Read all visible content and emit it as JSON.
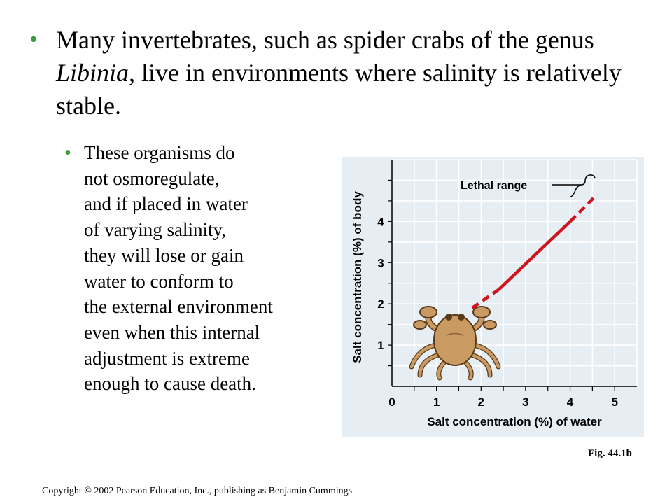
{
  "slide": {
    "main_bullet_pre": "Many invertebrates, such as spider crabs of the genus ",
    "main_bullet_italic": "Libinia",
    "main_bullet_post": ", live in environments where salinity is relatively stable.",
    "sub_bullet_lines": [
      "These organisms do",
      "not osmoregulate,",
      "and if placed in water",
      "of varying salinity,",
      "they will lose or gain",
      "water to conform to",
      "the external environment",
      "even when this internal",
      "adjustment is extreme",
      "enough to cause death."
    ],
    "bullet_glyph": "•",
    "figure_label": "Fig. 44.1b",
    "copyright": "Copyright © 2002 Pearson Education, Inc., publishing as Benjamin Cummings"
  },
  "colors": {
    "bullet": "#3a9b3a",
    "panel": "#e6edf3",
    "grid": "#ffffff",
    "line": "#d0141e",
    "crab_body": "#c99b62",
    "crab_outline": "#5a3a1a"
  },
  "chart_data": {
    "type": "line",
    "title": "",
    "xlabel": "Salt concentration (%) of water",
    "ylabel": "Salt concentration (%) of body",
    "xlim": [
      0,
      5.5
    ],
    "ylim": [
      0,
      5.5
    ],
    "x_ticks": [
      "0",
      "1",
      "2",
      "3",
      "4",
      "5"
    ],
    "y_ticks": [
      "1",
      "2",
      "3",
      "4"
    ],
    "grid": true,
    "series": [
      {
        "name": "",
        "segments": [
          {
            "style": "dashed",
            "x": [
              1.8,
              2.4
            ],
            "y": [
              1.9,
              2.35
            ]
          },
          {
            "style": "solid",
            "x": [
              2.4,
              4.0
            ],
            "y": [
              2.35,
              4.0
            ]
          },
          {
            "style": "dashed",
            "x": [
              4.0,
              4.6
            ],
            "y": [
              4.0,
              4.65
            ]
          }
        ]
      }
    ],
    "annotations": [
      {
        "text": "Lethal range",
        "applies_to": "dashed segments at both ends"
      }
    ]
  }
}
